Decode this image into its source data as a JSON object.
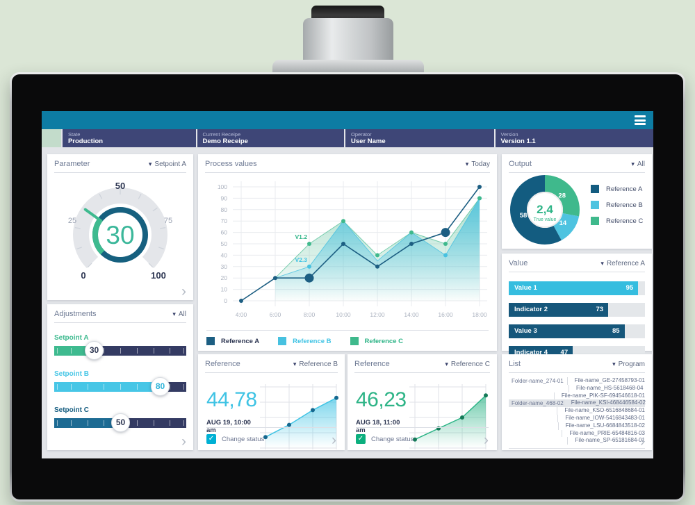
{
  "topbar": {
    "menu_icon": "hamburger-icon",
    "color": "#0d7ca3"
  },
  "status_bar": {
    "items": [
      {
        "label": "State",
        "value": "Production"
      },
      {
        "label": "Current Receipe",
        "value": "Demo Receipe"
      },
      {
        "label": "Operator",
        "value": "User Name"
      },
      {
        "label": "Version",
        "value": "Version 1.1"
      }
    ]
  },
  "widgets": {
    "parameter": {
      "title": "Parameter",
      "dropdown": "Setpoint A",
      "gauge": {
        "value": 30,
        "min": 0,
        "max": 100,
        "major_labels": [
          "0",
          "25",
          "50",
          "75",
          "100"
        ],
        "value_color": "#3bb79a",
        "ring_color": "#16607f",
        "arc_color": "#3eba8f"
      }
    },
    "adjustments": {
      "title": "Adjustments",
      "dropdown": "All",
      "sliders": [
        {
          "label": "Setpoint A",
          "value": 30,
          "fill": "#3eba8f",
          "label_color": "#3eba8f",
          "num_color": "#2d3652"
        },
        {
          "label": "Setpoint B",
          "value": 80,
          "fill": "#47c6e6",
          "label_color": "#47c6e6",
          "num_color": "#2bb3d9"
        },
        {
          "label": "Setpoint C",
          "value": 50,
          "fill": "#1d6b93",
          "label_color": "#155d80",
          "num_color": "#2d3652"
        }
      ]
    },
    "process": {
      "title": "Process values",
      "dropdown": "Today"
    },
    "output": {
      "title": "Output",
      "dropdown": "All",
      "center_value": "2,4",
      "center_label": "True value",
      "legend": [
        {
          "label": "Reference A",
          "color": "#135c80"
        },
        {
          "label": "Reference B",
          "color": "#4ec3e0"
        },
        {
          "label": "Reference C",
          "color": "#3fb98c"
        }
      ]
    },
    "value": {
      "title": "Value",
      "dropdown": "Reference A",
      "bars": [
        {
          "label": "Value 1",
          "value": 95,
          "color": "#35bddf"
        },
        {
          "label": "Indicator 2",
          "value": 73,
          "color": "#16577b"
        },
        {
          "label": "Value 3",
          "value": 85,
          "color": "#16577b"
        },
        {
          "label": "Indicator 4",
          "value": 47,
          "color": "#16577b"
        }
      ]
    },
    "reference_b": {
      "title": "Reference",
      "dropdown": "Reference B",
      "value": "44,78",
      "timestamp": "AUG 19, 10:00 am",
      "checkbox_label": "Change status",
      "accent": "#3fc3e4",
      "check_color": "#00b0d4",
      "dot_color": "#15688f"
    },
    "reference_c": {
      "title": "Reference",
      "dropdown": "Reference C",
      "value": "46,23",
      "timestamp": "AUG 18, 11:00 am",
      "checkbox_label": "Change status",
      "accent": "#2eb487",
      "check_color": "#0caf7e",
      "dot_color": "#157a58"
    },
    "list": {
      "title": "List",
      "dropdown": "Program",
      "rows": [
        {
          "folder": "Folder-name_274-01",
          "file": "File-name_GE-27458793-01",
          "highlight": false
        },
        {
          "folder": "",
          "file": "File-name_HS-5618468-04",
          "highlight": false
        },
        {
          "folder": "",
          "file": "File-name_PIK-SF-694546618-01",
          "highlight": false
        },
        {
          "folder": "Folder-name_468-02",
          "file": "File-name_KSI-468446584-02",
          "highlight": true
        },
        {
          "folder": "",
          "file": "File-name_KSO-6516848684-01",
          "highlight": false
        },
        {
          "folder": "",
          "file": "File-name_IOW-5416843483-01",
          "highlight": false
        },
        {
          "folder": "",
          "file": "File-name_LSU-6684843518-02",
          "highlight": false
        },
        {
          "folder": "",
          "file": "File-name_PRIE-65484816-03",
          "highlight": false
        },
        {
          "folder": "",
          "file": "File-name_SP-65181684-01",
          "highlight": false
        }
      ]
    }
  },
  "chart_data": [
    {
      "id": "process",
      "type": "line",
      "title": "Process values",
      "x": [
        "4:00",
        "6:00",
        "8:00",
        "10:00",
        "12:00",
        "14:00",
        "16:00",
        "18:00"
      ],
      "ylim": [
        0,
        100
      ],
      "ytick_step": 10,
      "grid": true,
      "legend_position": "bottom",
      "series": [
        {
          "name": "Reference A",
          "style": "line",
          "color": "#1c5e82",
          "values": [
            0,
            20,
            20,
            50,
            30,
            50,
            60,
            100
          ],
          "emphasis_idx": [
            2,
            6
          ]
        },
        {
          "name": "Reference B",
          "style": "area",
          "color": "#47c1e0",
          "values": [
            null,
            20,
            30,
            70,
            35,
            60,
            40,
            90
          ],
          "marker_idx": [
            2,
            6,
            7
          ]
        },
        {
          "name": "Reference C",
          "style": "area",
          "color": "#3fb98c",
          "values": [
            null,
            20,
            50,
            70,
            40,
            60,
            50,
            90
          ],
          "marker_idx": [
            2,
            3,
            4,
            5,
            6,
            7
          ]
        }
      ],
      "annotations": [
        {
          "text": "V1.2",
          "xi": 2,
          "y": 50,
          "color": "#2eb487"
        },
        {
          "text": "V2.3",
          "xi": 2,
          "y": 30,
          "color": "#3fc3e4"
        }
      ]
    },
    {
      "id": "output",
      "type": "pie",
      "title": "Output",
      "labels": [
        "Reference C",
        "Reference B",
        "Reference A"
      ],
      "values": [
        28,
        14,
        58
      ],
      "colors": [
        "#3fb98c",
        "#4ec3e0",
        "#135c80"
      ],
      "center_value": "2,4",
      "center_label": "True value"
    },
    {
      "id": "value-bars",
      "type": "bar",
      "title": "Value",
      "categories": [
        "Value 1",
        "Indicator 2",
        "Value 3",
        "Indicator 4"
      ],
      "values": [
        95,
        73,
        85,
        47
      ],
      "xlim": [
        0,
        100
      ]
    },
    {
      "id": "spark-reference-b",
      "type": "line",
      "title": "Reference 44,78",
      "values": [
        18,
        38,
        62,
        82
      ]
    },
    {
      "id": "spark-reference-c",
      "type": "line",
      "title": "Reference 46,23",
      "values": [
        14,
        32,
        50,
        86
      ]
    }
  ]
}
